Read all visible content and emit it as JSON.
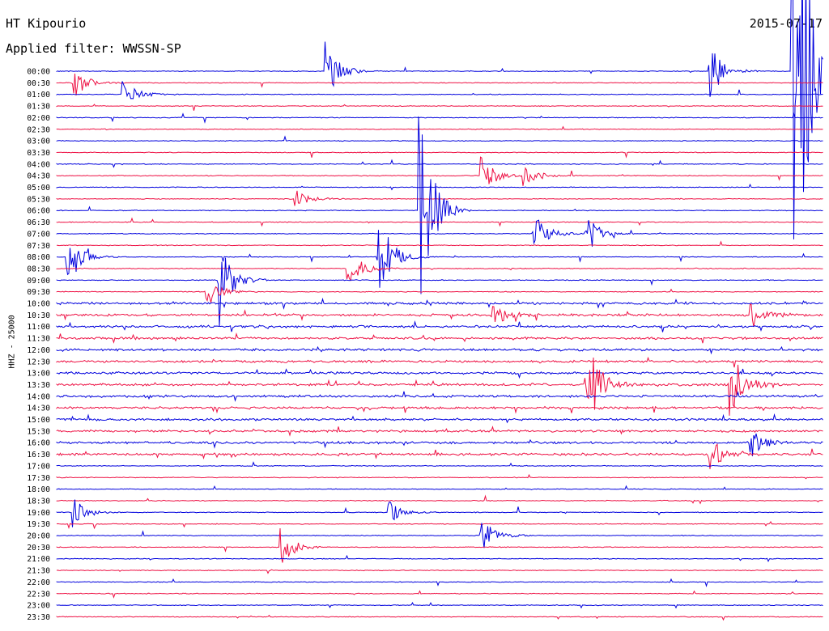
{
  "header": {
    "station": "HT Kipourio",
    "filter": "Applied filter: WWSSN-SP",
    "date": "2015-07-17",
    "channel_label": "HHZ - 25000"
  },
  "colors": {
    "trace_a": "#0000dd",
    "trace_b": "#ee1144"
  },
  "chart_data": {
    "type": "line",
    "title": "HT Kipourio",
    "subtitle": "Applied filter: WWSSN-SP",
    "ylabel": "HHZ - 25000",
    "x_range_minutes": [
      0,
      30
    ],
    "rows": [
      "00:00",
      "00:30",
      "01:00",
      "01:30",
      "02:00",
      "02:30",
      "03:00",
      "03:30",
      "04:00",
      "04:30",
      "05:00",
      "05:30",
      "06:00",
      "06:30",
      "07:00",
      "07:30",
      "08:00",
      "08:30",
      "09:00",
      "09:30",
      "10:00",
      "10:30",
      "11:00",
      "11:30",
      "12:00",
      "12:30",
      "13:00",
      "13:30",
      "14:00",
      "14:30",
      "15:00",
      "15:30",
      "16:00",
      "16:30",
      "17:00",
      "17:30",
      "18:00",
      "18:30",
      "19:00",
      "19:30",
      "20:00",
      "20:30",
      "21:00",
      "21:30",
      "22:00",
      "22:30",
      "23:00",
      "23:30"
    ],
    "events": [
      {
        "row": "00:00",
        "minute": 13.0,
        "amp": 0.6
      },
      {
        "row": "00:00",
        "minute": 31.5,
        "amp": 0.6
      },
      {
        "row": "00:00",
        "minute": 35.5,
        "amp": 8.0
      },
      {
        "row": "00:30",
        "minute": 0.8,
        "amp": 0.35
      },
      {
        "row": "01:00",
        "minute": 3.2,
        "amp": 0.3
      },
      {
        "row": "04:30",
        "minute": 20.5,
        "amp": 0.4
      },
      {
        "row": "04:30",
        "minute": 22.5,
        "amp": 0.3
      },
      {
        "row": "05:30",
        "minute": 11.5,
        "amp": 0.2
      },
      {
        "row": "06:00",
        "minute": 17.5,
        "amp": 2.3
      },
      {
        "row": "07:00",
        "minute": 23.0,
        "amp": 0.5
      },
      {
        "row": "07:00",
        "minute": 25.5,
        "amp": 0.5
      },
      {
        "row": "08:00",
        "minute": 0.5,
        "amp": 0.5
      },
      {
        "row": "08:00",
        "minute": 15.5,
        "amp": 1.0
      },
      {
        "row": "08:30",
        "minute": 14.0,
        "amp": 0.5
      },
      {
        "row": "09:00",
        "minute": 7.8,
        "amp": 1.0
      },
      {
        "row": "09:30",
        "minute": 7.2,
        "amp": 0.35
      },
      {
        "row": "10:30",
        "minute": 21.0,
        "amp": 0.3
      },
      {
        "row": "10:30",
        "minute": 33.5,
        "amp": 0.3
      },
      {
        "row": "13:30",
        "minute": 25.5,
        "amp": 1.2
      },
      {
        "row": "13:30",
        "minute": 32.5,
        "amp": 0.8
      },
      {
        "row": "16:00",
        "minute": 33.5,
        "amp": 0.3
      },
      {
        "row": "16:30",
        "minute": 31.5,
        "amp": 0.4
      },
      {
        "row": "19:00",
        "minute": 0.8,
        "amp": 0.3
      },
      {
        "row": "19:00",
        "minute": 16.0,
        "amp": 0.25
      },
      {
        "row": "20:00",
        "minute": 20.5,
        "amp": 0.4
      },
      {
        "row": "20:30",
        "minute": 10.8,
        "amp": 0.4
      }
    ]
  }
}
